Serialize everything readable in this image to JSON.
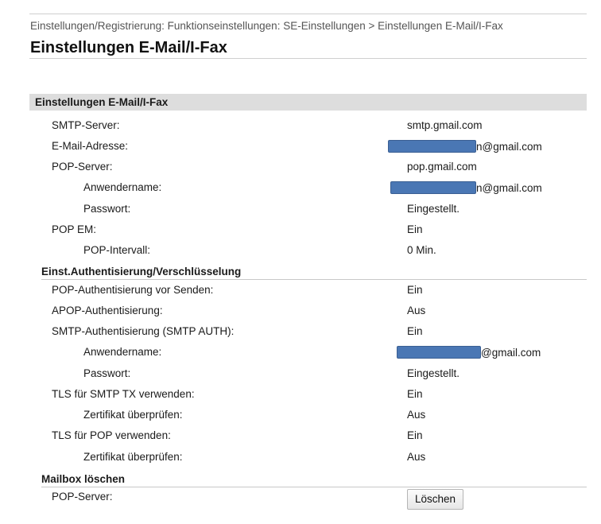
{
  "breadcrumb": "Einstellungen/Registrierung: Funktionseinstellungen: SE-Einstellungen > Einstellungen E-Mail/I-Fax",
  "page_title": "Einstellungen E-Mail/I-Fax",
  "colors": {
    "section_bar": "#dddddd",
    "redaction": "#4a77b4",
    "rule": "#cfcfcf"
  },
  "section_main": {
    "title": "Einstellungen E-Mail/I-Fax",
    "smtp_server": {
      "label": "SMTP-Server:",
      "value": "smtp.gmail.com"
    },
    "email_address": {
      "label": "E-Mail-Adresse:",
      "value_suffix": "n@gmail.com"
    },
    "pop_server": {
      "label": "POP-Server:",
      "value": "pop.gmail.com"
    },
    "pop_user": {
      "label": "Anwendername:",
      "value_suffix": "n@gmail.com"
    },
    "pop_password": {
      "label": "Passwort:",
      "value": "Eingestellt."
    },
    "pop_em": {
      "label": "POP EM:",
      "value": "Ein"
    },
    "pop_interval": {
      "label": "POP-Intervall:",
      "value": "0 Min."
    }
  },
  "section_auth": {
    "title": "Einst.Authentisierung/Verschlüsselung",
    "pop_before_send": {
      "label": "POP-Authentisierung vor Senden:",
      "value": "Ein"
    },
    "apop": {
      "label": "APOP-Authentisierung:",
      "value": "Aus"
    },
    "smtp_auth": {
      "label": "SMTP-Authentisierung (SMTP AUTH):",
      "value": "Ein"
    },
    "smtp_user": {
      "label": "Anwendername:",
      "value_suffix": "@gmail.com"
    },
    "smtp_password": {
      "label": "Passwort:",
      "value": "Eingestellt."
    },
    "tls_smtp": {
      "label": "TLS für SMTP TX verwenden:",
      "value": "Ein"
    },
    "tls_smtp_cert": {
      "label": "Zertifikat überprüfen:",
      "value": "Aus"
    },
    "tls_pop": {
      "label": "TLS für POP verwenden:",
      "value": "Ein"
    },
    "tls_pop_cert": {
      "label": "Zertifikat überprüfen:",
      "value": "Aus"
    }
  },
  "section_mailbox": {
    "title": "Mailbox löschen",
    "pop_server": {
      "label": "POP-Server:"
    },
    "delete_button": "Löschen"
  }
}
